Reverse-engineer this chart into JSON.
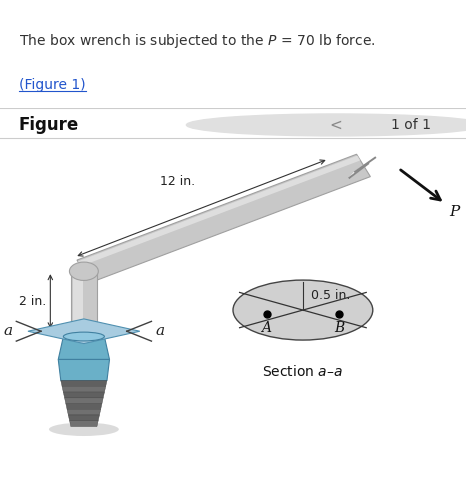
{
  "bg_top": "#e8f4f8",
  "bg_fig": "#ffffff",
  "title_text": "The box wrench is subjected to the $P$ = 70 lb force.",
  "link_text": "(Figure 1)",
  "fig_label": "Figure",
  "page_label": "1 of 1",
  "dim_12": "12 in.",
  "dim_2": "2 in.",
  "dim_05": "0.5 in.",
  "label_a1": "a",
  "label_a2": "a",
  "label_A": "A",
  "label_B": "B",
  "label_P": "P",
  "section_label": "Section $a$–$a$",
  "wrench_color": "#c8c8c8",
  "wrench_dark": "#a0a0a0",
  "wrench_highlight": "#e8e8e8",
  "bolt_color": "#6ab0c8",
  "bolt_dark": "#4080a0",
  "bolt_top_color": "#90c8e0",
  "screw_color_even": "#606060",
  "screw_color_odd": "#707070",
  "screw_edge": "#404040",
  "shadow_color": "#d0d0d0",
  "section_fill": "#d0d0d0",
  "section_edge": "#444444",
  "diamond_fill": "#a8cce0",
  "diamond_edge": "#5090b0",
  "dim_color": "#333333",
  "text_color": "#222222",
  "link_color": "#2255cc",
  "nav_circle_color": "#e0e0e0",
  "sep_line_color": "#cccccc"
}
